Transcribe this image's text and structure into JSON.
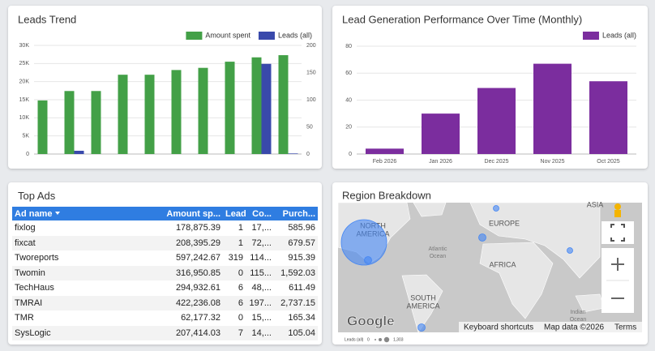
{
  "chart_data": [
    {
      "type": "bar",
      "title": "Leads Trend",
      "categories": [
        null,
        null,
        null,
        null,
        null,
        null,
        null,
        null,
        null,
        null
      ],
      "series": [
        {
          "name": "Amount spent",
          "color": "#43a047",
          "values": [
            14800,
            17400,
            17400,
            21900,
            21900,
            23200,
            23800,
            25500,
            26700,
            27300
          ]
        },
        {
          "name": "Leads (all)",
          "color": "#3949ab",
          "axis": "y2",
          "values": [
            0,
            6,
            0,
            0,
            0,
            0,
            0,
            0,
            166,
            1
          ]
        }
      ],
      "ylim": [
        0,
        30000
      ],
      "yticks": [
        0,
        {
          "value": 5000,
          "label": "5K"
        },
        {
          "value": 10000,
          "label": "10K"
        },
        {
          "value": 15000,
          "label": "15K"
        },
        {
          "value": 20000,
          "label": "20K"
        },
        {
          "value": 25000,
          "label": "25K"
        },
        {
          "value": 30000,
          "label": "30K"
        }
      ],
      "y2lim": [
        0,
        200
      ],
      "y2ticks": [
        0,
        50,
        100,
        150,
        200
      ],
      "grid": true,
      "legend": "top-right"
    },
    {
      "type": "bar",
      "title": "Lead Generation Performance Over Time (Monthly)",
      "categories": [
        "Feb 2026",
        "Jan 2026",
        "Dec 2025",
        "Nov 2025",
        "Oct 2025"
      ],
      "series": [
        {
          "name": "Leads (all)",
          "color": "#7b2d9e",
          "values": [
            4,
            30,
            49,
            67,
            54
          ]
        }
      ],
      "ylim": [
        0,
        80
      ],
      "yticks": [
        0,
        20,
        40,
        60,
        80
      ],
      "grid": true,
      "legend": "top-right"
    }
  ],
  "top_ads": {
    "title": "Top Ads",
    "header": [
      "Ad name",
      "Amount sp...",
      "Leads...",
      "Co...",
      "Purch..."
    ],
    "rows": [
      [
        "fixlog",
        "178,875.39",
        "1",
        "17,...",
        "585.96"
      ],
      [
        "fixcat",
        "208,395.29",
        "1",
        "72,...",
        "679.57"
      ],
      [
        "Tworeports",
        "597,242.67",
        "319",
        "114...",
        "915.39"
      ],
      [
        "Twomin",
        "316,950.85",
        "0",
        "115...",
        "1,592.03"
      ],
      [
        "TechHaus",
        "294,932.61",
        "6",
        "48,...",
        "611.49"
      ],
      [
        "TMRAI",
        "422,236.08",
        "6",
        "197...",
        "2,737.15"
      ],
      [
        "TMR",
        "62,177.32",
        "0",
        "15,...",
        "165.34"
      ],
      [
        "SysLogic",
        "207,414.03",
        "7",
        "14,...",
        "105.04"
      ]
    ]
  },
  "region_breakdown": {
    "title": "Region Breakdown",
    "labels": {
      "north_america": [
        "NORTH",
        "AMERICA"
      ],
      "europe": "EUROPE",
      "asia": "ASIA",
      "africa": "AFRICA",
      "atlantic": [
        "Atlantic",
        "Ocean"
      ],
      "south_america": [
        "SOUTH",
        "AMERICA"
      ],
      "indian": [
        "Indian",
        "Ocean"
      ]
    },
    "google": "Google",
    "footer": [
      "Keyboard shortcuts",
      "Map data ©2026",
      "Terms"
    ],
    "legend": {
      "title": "Leads (all)",
      "min": "0",
      "max": "1,303"
    }
  }
}
